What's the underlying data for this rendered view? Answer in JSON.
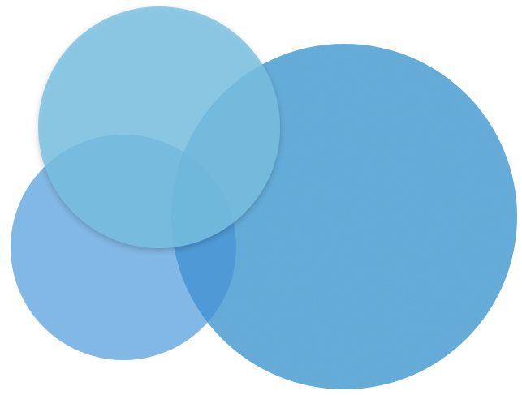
{
  "diagram": {
    "type": "overlapping-circles",
    "circles": [
      {
        "id": "large-right",
        "fill": "#5ba8d8",
        "texture": "speckled"
      },
      {
        "id": "bottom-left",
        "fill": "#77b2e3"
      },
      {
        "id": "top-left",
        "fill": "#77c0e2"
      }
    ],
    "colors": {
      "background": "#ffffff",
      "large_right": "#5ba8d8",
      "bottom_left": "#77b2e3",
      "top_left": "#77c0e2",
      "overlap_dark": "#2f86cc"
    }
  }
}
